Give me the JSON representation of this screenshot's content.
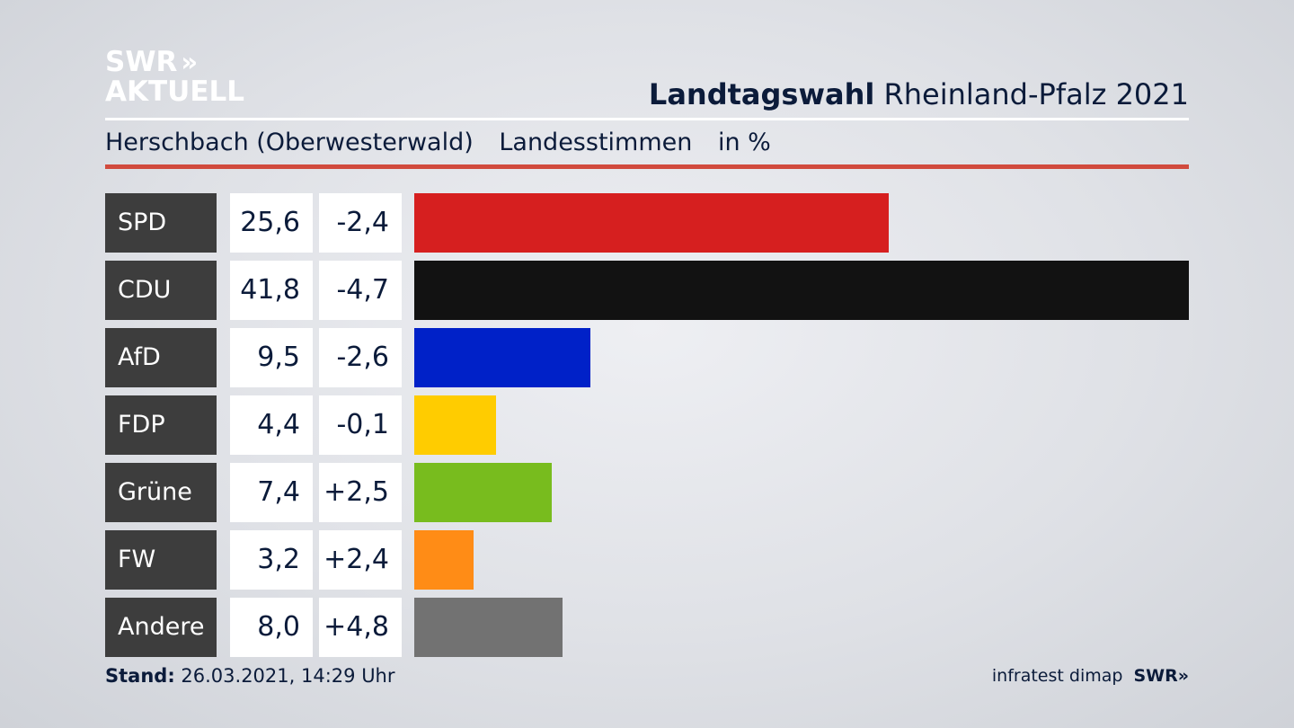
{
  "logo": {
    "line1": "SWR",
    "chevrons": "»",
    "line2": "AKTUELL"
  },
  "header": {
    "title_bold": "Landtagswahl",
    "title_rest": "Rheinland-Pfalz 2021"
  },
  "subheader": {
    "location": "Herschbach (Oberwesterwald)",
    "metric": "Landesstimmen",
    "unit": "in %"
  },
  "footer": {
    "stand_label": "Stand:",
    "stand_value": "26.03.2021, 14:29 Uhr",
    "source": "infratest dimap",
    "brand": "SWR",
    "brand_chevrons": "»"
  },
  "chart_data": {
    "type": "bar",
    "orientation": "horizontal",
    "categories": [
      "SPD",
      "CDU",
      "AfD",
      "FDP",
      "Grüne",
      "FW",
      "Andere"
    ],
    "values": [
      25.6,
      41.8,
      9.5,
      4.4,
      7.4,
      3.2,
      8.0
    ],
    "value_labels": [
      "25,6",
      "41,8",
      "9,5",
      "4,4",
      "7,4",
      "3,2",
      "8,0"
    ],
    "changes": [
      -2.4,
      -4.7,
      -2.6,
      -0.1,
      2.5,
      2.4,
      4.8
    ],
    "change_labels": [
      "-2,4",
      "-4,7",
      "-2,6",
      "-0,1",
      "+2,5",
      "+2,4",
      "+4,8"
    ],
    "colors": [
      "#d61f1f",
      "#121212",
      "#0021c8",
      "#ffcc00",
      "#78bc1e",
      "#ff8c16",
      "#727272"
    ],
    "xlim": [
      0,
      41.8
    ]
  }
}
